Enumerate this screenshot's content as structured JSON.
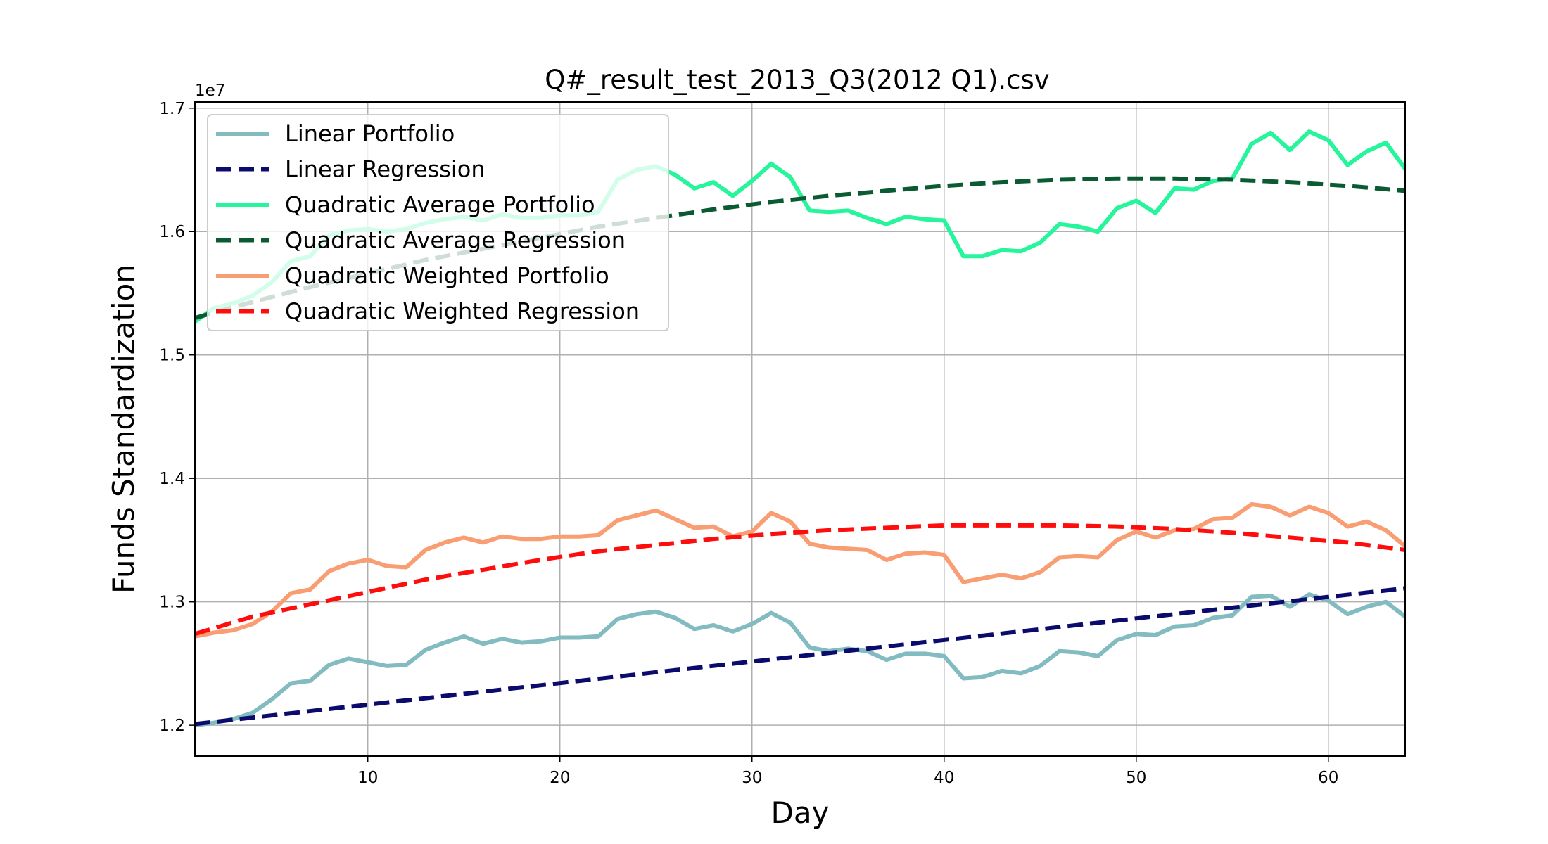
{
  "chart_data": {
    "type": "line",
    "title": "Q#_result_test_2013_Q3(2012 Q1).csv",
    "xlabel": "Day",
    "ylabel": "Funds Standardization",
    "y_offset_label": "1e7",
    "y_scale": 10000000,
    "xlim": [
      1,
      64
    ],
    "ylim": [
      11750000,
      17050000
    ],
    "x_ticks": [
      10,
      20,
      30,
      40,
      50,
      60
    ],
    "y_ticks": [
      12000000,
      13000000,
      14000000,
      15000000,
      16000000,
      17000000
    ],
    "y_tick_labels": [
      "1.2",
      "1.3",
      "1.4",
      "1.5",
      "1.6",
      "1.7"
    ],
    "grid": true,
    "legend_position": "upper-left",
    "series": [
      {
        "name": "Linear Portfolio",
        "style": "solid",
        "color": "#82bcc0",
        "x": [
          1,
          2,
          3,
          4,
          5,
          6,
          7,
          8,
          9,
          10,
          11,
          12,
          13,
          14,
          15,
          16,
          17,
          18,
          19,
          20,
          21,
          22,
          23,
          24,
          25,
          26,
          27,
          28,
          29,
          30,
          31,
          32,
          33,
          34,
          35,
          36,
          37,
          38,
          39,
          40,
          41,
          42,
          43,
          44,
          45,
          46,
          47,
          48,
          49,
          50,
          51,
          52,
          53,
          54,
          55,
          56,
          57,
          58,
          59,
          60,
          61,
          62,
          63,
          64
        ],
        "y": [
          12000000,
          12020000,
          12050000,
          12100000,
          12210000,
          12340000,
          12360000,
          12490000,
          12540000,
          12510000,
          12480000,
          12490000,
          12610000,
          12670000,
          12720000,
          12660000,
          12700000,
          12670000,
          12680000,
          12710000,
          12710000,
          12720000,
          12860000,
          12900000,
          12920000,
          12870000,
          12780000,
          12810000,
          12760000,
          12820000,
          12910000,
          12830000,
          12630000,
          12600000,
          12620000,
          12600000,
          12530000,
          12580000,
          12580000,
          12560000,
          12380000,
          12390000,
          12440000,
          12420000,
          12480000,
          12600000,
          12590000,
          12560000,
          12690000,
          12740000,
          12730000,
          12800000,
          12810000,
          12870000,
          12890000,
          13040000,
          13050000,
          12960000,
          13060000,
          13010000,
          12900000,
          12960000,
          13000000,
          12880000
        ]
      },
      {
        "name": "Linear Regression",
        "style": "dashed",
        "color": "#0b0b6e",
        "x": [
          1,
          64
        ],
        "y": [
          12010000,
          13110000
        ]
      },
      {
        "name": "Quadratic Average Portfolio",
        "style": "solid",
        "color": "#27f59b",
        "x": [
          1,
          2,
          3,
          4,
          5,
          6,
          7,
          8,
          9,
          10,
          11,
          12,
          13,
          14,
          15,
          16,
          17,
          18,
          19,
          20,
          21,
          22,
          23,
          24,
          25,
          26,
          27,
          28,
          29,
          30,
          31,
          32,
          33,
          34,
          35,
          36,
          37,
          38,
          39,
          40,
          41,
          42,
          43,
          44,
          45,
          46,
          47,
          48,
          49,
          50,
          51,
          52,
          53,
          54,
          55,
          56,
          57,
          58,
          59,
          60,
          61,
          62,
          63,
          64
        ],
        "y": [
          15270000,
          15380000,
          15420000,
          15480000,
          15590000,
          15760000,
          15800000,
          15970000,
          16010000,
          16020000,
          16000000,
          16020000,
          16070000,
          16100000,
          16120000,
          16090000,
          16140000,
          16110000,
          16110000,
          16130000,
          16130000,
          16160000,
          16420000,
          16500000,
          16530000,
          16460000,
          16350000,
          16400000,
          16290000,
          16410000,
          16550000,
          16440000,
          16170000,
          16160000,
          16170000,
          16110000,
          16060000,
          16120000,
          16100000,
          16090000,
          15800000,
          15800000,
          15850000,
          15840000,
          15910000,
          16060000,
          16040000,
          16000000,
          16190000,
          16250000,
          16150000,
          16350000,
          16340000,
          16410000,
          16430000,
          16710000,
          16800000,
          16660000,
          16810000,
          16740000,
          16540000,
          16650000,
          16720000,
          16510000
        ]
      },
      {
        "name": "Quadratic Average Regression",
        "style": "dashed",
        "color": "#0a5a32",
        "x": [
          1,
          4,
          7,
          10,
          13,
          16,
          19,
          22,
          25,
          28,
          31,
          34,
          37,
          40,
          43,
          46,
          49,
          52,
          55,
          58,
          61,
          64
        ],
        "y": [
          15300000,
          15430000,
          15550000,
          15660000,
          15770000,
          15860000,
          15950000,
          16040000,
          16110000,
          16180000,
          16240000,
          16290000,
          16330000,
          16370000,
          16400000,
          16420000,
          16430000,
          16430000,
          16420000,
          16400000,
          16370000,
          16330000
        ]
      },
      {
        "name": "Quadratic Weighted Portfolio",
        "style": "solid",
        "color": "#f99d72",
        "x": [
          1,
          2,
          3,
          4,
          5,
          6,
          7,
          8,
          9,
          10,
          11,
          12,
          13,
          14,
          15,
          16,
          17,
          18,
          19,
          20,
          21,
          22,
          23,
          24,
          25,
          26,
          27,
          28,
          29,
          30,
          31,
          32,
          33,
          34,
          35,
          36,
          37,
          38,
          39,
          40,
          41,
          42,
          43,
          44,
          45,
          46,
          47,
          48,
          49,
          50,
          51,
          52,
          53,
          54,
          55,
          56,
          57,
          58,
          59,
          60,
          61,
          62,
          63,
          64
        ],
        "y": [
          12720000,
          12750000,
          12770000,
          12820000,
          12920000,
          13070000,
          13100000,
          13250000,
          13310000,
          13340000,
          13290000,
          13280000,
          13420000,
          13480000,
          13520000,
          13480000,
          13530000,
          13510000,
          13510000,
          13530000,
          13530000,
          13540000,
          13660000,
          13700000,
          13740000,
          13670000,
          13600000,
          13610000,
          13530000,
          13570000,
          13720000,
          13650000,
          13470000,
          13440000,
          13430000,
          13420000,
          13340000,
          13390000,
          13400000,
          13380000,
          13160000,
          13190000,
          13220000,
          13190000,
          13240000,
          13360000,
          13370000,
          13360000,
          13500000,
          13570000,
          13520000,
          13580000,
          13590000,
          13670000,
          13680000,
          13790000,
          13770000,
          13700000,
          13770000,
          13720000,
          13610000,
          13650000,
          13580000,
          13450000
        ]
      },
      {
        "name": "Quadratic Weighted Regression",
        "style": "dashed",
        "color": "#ff0d0d",
        "x": [
          1,
          4,
          7,
          10,
          13,
          16,
          19,
          22,
          25,
          28,
          31,
          34,
          37,
          40,
          43,
          46,
          49,
          52,
          55,
          58,
          61,
          64
        ],
        "y": [
          12740000,
          12880000,
          12980000,
          13080000,
          13180000,
          13260000,
          13340000,
          13410000,
          13460000,
          13510000,
          13550000,
          13580000,
          13600000,
          13620000,
          13620000,
          13620000,
          13610000,
          13590000,
          13560000,
          13520000,
          13480000,
          13420000
        ]
      }
    ]
  }
}
